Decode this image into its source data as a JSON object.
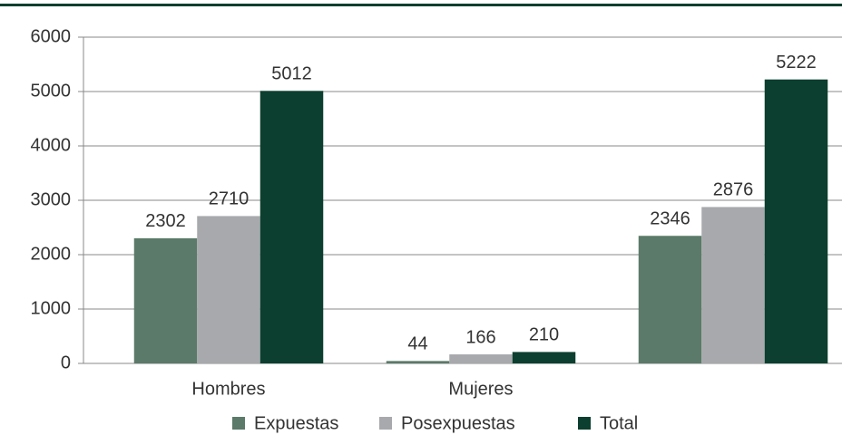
{
  "chart_data": {
    "type": "bar",
    "categories": [
      "Hombres",
      "Mujeres",
      null
    ],
    "series": [
      {
        "name": "Expuestas",
        "color": "#5b7a69",
        "values": [
          2302,
          44,
          2346
        ]
      },
      {
        "name": "Posexpuestas",
        "color": "#a8a9ac",
        "values": [
          2710,
          166,
          2876
        ]
      },
      {
        "name": "Total",
        "color": "#0c3f2f",
        "values": [
          5012,
          210,
          5222
        ]
      }
    ],
    "ylim": [
      0,
      6000
    ],
    "yticks": [
      0,
      1000,
      2000,
      3000,
      4000,
      5000,
      6000
    ],
    "grid": true,
    "legend": "bottom",
    "frame_color": "#0c3f2f"
  }
}
